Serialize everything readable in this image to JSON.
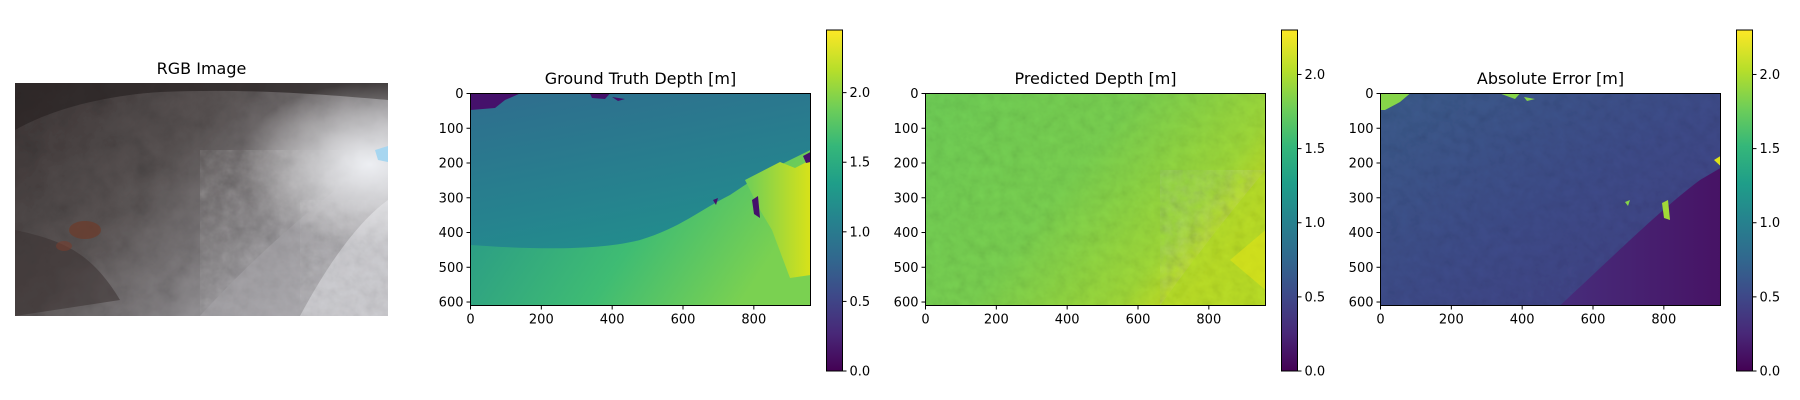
{
  "figure": {
    "panel_titles": [
      "RGB Image",
      "Ground Truth Depth [m]",
      "Predicted Depth [m]",
      "Absolute Error [m]"
    ]
  },
  "colors": {
    "viridis": [
      "#440154",
      "#482878",
      "#3e4989",
      "#31688e",
      "#26828e",
      "#1f9e89",
      "#35b779",
      "#6ece58",
      "#b5de2b",
      "#fde725"
    ]
  },
  "chart_data": [
    {
      "type": "image",
      "title": "RGB Image",
      "content": "underwater photo of a rocky reef wall, grey-brown rock surface with a bright patch at right"
    },
    {
      "type": "heatmap",
      "title": "Ground Truth Depth [m]",
      "xticks": [
        0,
        200,
        400,
        600,
        800
      ],
      "yticks": [
        0,
        100,
        200,
        300,
        400,
        500,
        600
      ],
      "xlim": [
        0,
        960
      ],
      "ylim": [
        610,
        0
      ],
      "colormap": "viridis",
      "colorbar": {
        "range": [
          0.0,
          2.45
        ],
        "ticks": [
          "0.0",
          "0.5",
          "1.0",
          "1.5",
          "2.0"
        ]
      }
    },
    {
      "type": "heatmap",
      "title": "Predicted Depth [m]",
      "xticks": [
        0,
        200,
        400,
        600,
        800
      ],
      "yticks": [
        0,
        100,
        200,
        300,
        400,
        500,
        600
      ],
      "xlim": [
        0,
        960
      ],
      "ylim": [
        610,
        0
      ],
      "colormap": "viridis",
      "colorbar": {
        "range": [
          0.0,
          2.3
        ],
        "ticks": [
          "0.0",
          "0.5",
          "1.0",
          "1.5",
          "2.0"
        ]
      }
    },
    {
      "type": "heatmap",
      "title": "Absolute Error [m]",
      "xticks": [
        0,
        200,
        400,
        600,
        800
      ],
      "yticks": [
        0,
        100,
        200,
        300,
        400,
        500,
        600
      ],
      "xlim": [
        0,
        960
      ],
      "ylim": [
        610,
        0
      ],
      "colormap": "viridis",
      "colorbar": {
        "range": [
          0.0,
          2.3
        ],
        "ticks": [
          "0.0",
          "0.5",
          "1.0",
          "1.5",
          "2.0"
        ]
      }
    }
  ]
}
